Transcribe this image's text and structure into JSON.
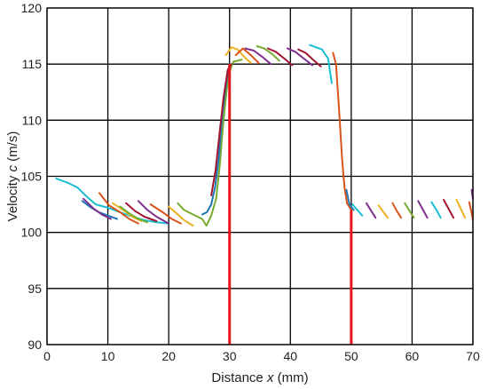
{
  "chart_data": {
    "type": "line",
    "title": "",
    "xlabel": "Distance x (mm)",
    "xlabel_parts": {
      "before": "Distance ",
      "var": "x",
      "after": " (mm)"
    },
    "ylabel": "Velocity c (m/s)",
    "ylabel_parts": {
      "before": "Velocity ",
      "var": "c",
      "after": " (m/s)"
    },
    "xlim": [
      0,
      70
    ],
    "ylim": [
      90,
      120
    ],
    "xticks": [
      0,
      10,
      20,
      30,
      40,
      50,
      60,
      70
    ],
    "yticks": [
      90,
      95,
      100,
      105,
      110,
      115,
      120
    ],
    "xtick_labels": [
      "0",
      "10",
      "20",
      "30",
      "40",
      "50",
      "60",
      "70"
    ],
    "ytick_labels": [
      "90",
      "95",
      "100",
      "105",
      "110",
      "115",
      "120"
    ],
    "grid": true,
    "vertical_markers": [
      {
        "x": 30,
        "y_top": 115,
        "color": "#e8141c"
      },
      {
        "x": 50,
        "y_top": 102,
        "color": "#e8141c"
      }
    ],
    "series": [
      {
        "color": "#17becf",
        "points": [
          [
            1.5,
            104.8
          ],
          [
            3.5,
            104.4
          ],
          [
            5,
            104
          ],
          [
            6.5,
            103.2
          ],
          [
            8,
            102.5
          ],
          [
            10,
            102.2
          ],
          [
            12,
            101.8
          ],
          [
            14,
            101.4
          ],
          [
            16,
            101.1
          ],
          [
            18,
            100.9
          ],
          [
            20,
            100.8
          ]
        ]
      },
      {
        "color": "#1f77b4",
        "points": [
          [
            5.8,
            102.8
          ],
          [
            7,
            102.3
          ],
          [
            8.5,
            101.8
          ],
          [
            10,
            101.5
          ],
          [
            11.5,
            101.2
          ]
        ]
      },
      {
        "color": "#7e2f8e",
        "points": [
          [
            6,
            103
          ],
          [
            7.5,
            102.2
          ],
          [
            9,
            101.6
          ],
          [
            10.5,
            101.2
          ]
        ]
      },
      {
        "color": "#d95319",
        "points": [
          [
            8.6,
            103.5
          ],
          [
            10.2,
            102.4
          ],
          [
            12,
            101.8
          ],
          [
            13.5,
            101.2
          ],
          [
            15,
            100.8
          ]
        ]
      },
      {
        "color": "#edb120",
        "points": [
          [
            10.8,
            102.6
          ],
          [
            12.5,
            102
          ],
          [
            14,
            101.4
          ],
          [
            15.5,
            101
          ]
        ]
      },
      {
        "color": "#77ac30",
        "points": [
          [
            12,
            102.3
          ],
          [
            13.5,
            101.7
          ],
          [
            15,
            101.2
          ],
          [
            16.5,
            100.9
          ]
        ]
      },
      {
        "color": "#a2142f",
        "points": [
          [
            13,
            102.6
          ],
          [
            14.5,
            101.9
          ],
          [
            16,
            101.4
          ],
          [
            18,
            101
          ]
        ]
      },
      {
        "color": "#7e2f8e",
        "points": [
          [
            15,
            102.8
          ],
          [
            16.5,
            102
          ],
          [
            18,
            101.4
          ],
          [
            20,
            100.8
          ]
        ]
      },
      {
        "color": "#d95319",
        "points": [
          [
            17,
            102.5
          ],
          [
            19,
            101.8
          ],
          [
            20.5,
            101.2
          ],
          [
            22,
            100.8
          ]
        ]
      },
      {
        "color": "#edb120",
        "points": [
          [
            20,
            102.3
          ],
          [
            21.5,
            101.6
          ],
          [
            22.5,
            101.1
          ],
          [
            24,
            100.6
          ]
        ]
      },
      {
        "color": "#77ac30",
        "points": [
          [
            21.5,
            102.6
          ],
          [
            22.5,
            102
          ],
          [
            24,
            101.6
          ],
          [
            25.5,
            101.2
          ],
          [
            26.2,
            100.6
          ],
          [
            27,
            101.5
          ],
          [
            27.8,
            103
          ],
          [
            28.4,
            106
          ],
          [
            29,
            110
          ],
          [
            29.8,
            114
          ],
          [
            30.6,
            115.2
          ],
          [
            32,
            115.4
          ]
        ]
      },
      {
        "color": "#1f77b4",
        "points": [
          [
            25.5,
            101.6
          ],
          [
            26.3,
            101.8
          ],
          [
            27,
            102.5
          ],
          [
            27.6,
            104
          ],
          [
            28.2,
            106.5
          ],
          [
            28.8,
            110.5
          ],
          [
            29.5,
            113.5
          ],
          [
            30,
            115
          ]
        ]
      },
      {
        "color": "#a2142f",
        "points": [
          [
            27,
            103.3
          ],
          [
            27.7,
            105.5
          ],
          [
            28.4,
            109
          ],
          [
            29,
            112
          ],
          [
            29.7,
            114.5
          ],
          [
            30.3,
            115
          ]
        ]
      },
      {
        "color": "#edb120",
        "points": [
          [
            29.4,
            115.8
          ],
          [
            30.3,
            116.5
          ],
          [
            31.3,
            116.3
          ],
          [
            32.5,
            115.6
          ],
          [
            33.5,
            115.1
          ]
        ]
      },
      {
        "color": "#d95319",
        "points": [
          [
            31,
            115.8
          ],
          [
            32.2,
            116.4
          ],
          [
            33.5,
            115.8
          ],
          [
            34.8,
            115.1
          ]
        ]
      },
      {
        "color": "#7e2f8e",
        "points": [
          [
            32.6,
            116.4
          ],
          [
            34,
            116.2
          ],
          [
            35.5,
            115.6
          ],
          [
            36.8,
            115
          ]
        ]
      },
      {
        "color": "#77ac30",
        "points": [
          [
            34.5,
            116.6
          ],
          [
            35.7,
            116.4
          ],
          [
            37,
            115.9
          ],
          [
            38.2,
            115.3
          ]
        ]
      },
      {
        "color": "#a2142f",
        "points": [
          [
            36.3,
            116.4
          ],
          [
            37.6,
            116.1
          ],
          [
            39,
            115.5
          ],
          [
            40.3,
            114.9
          ]
        ]
      },
      {
        "color": "#7e2f8e",
        "points": [
          [
            39.5,
            116.4
          ],
          [
            40.8,
            116.1
          ],
          [
            42.2,
            115.5
          ],
          [
            43.6,
            114.9
          ]
        ]
      },
      {
        "color": "#a2142f",
        "points": [
          [
            41.3,
            116.3
          ],
          [
            42.5,
            116
          ],
          [
            43.7,
            115.4
          ],
          [
            45,
            114.8
          ]
        ]
      },
      {
        "color": "#17becf",
        "points": [
          [
            43.2,
            116.7
          ],
          [
            44.2,
            116.5
          ],
          [
            45.2,
            116.3
          ],
          [
            46.2,
            115.5
          ],
          [
            46.8,
            113.3
          ]
        ]
      },
      {
        "color": "#d95319",
        "points": [
          [
            47,
            116
          ],
          [
            47.5,
            115
          ],
          [
            48,
            111
          ],
          [
            48.5,
            106.5
          ],
          [
            48.9,
            104
          ],
          [
            49.3,
            102.6
          ],
          [
            50,
            102
          ]
        ]
      },
      {
        "color": "#1f77b4",
        "points": [
          [
            49.2,
            103.8
          ],
          [
            49.7,
            102.5
          ],
          [
            50.4,
            102
          ]
        ]
      },
      {
        "color": "#17becf",
        "points": [
          [
            50.2,
            102.5
          ],
          [
            51,
            102
          ],
          [
            51.8,
            101.5
          ]
        ]
      },
      {
        "color": "#7e2f8e",
        "points": [
          [
            52.5,
            102.6
          ],
          [
            53.3,
            101.9
          ],
          [
            54,
            101.3
          ]
        ]
      },
      {
        "color": "#edb120",
        "points": [
          [
            54.5,
            102.4
          ],
          [
            55.3,
            101.8
          ],
          [
            56,
            101.3
          ]
        ]
      },
      {
        "color": "#d95319",
        "points": [
          [
            56.8,
            102.6
          ],
          [
            57.5,
            101.9
          ],
          [
            58.2,
            101.3
          ]
        ]
      },
      {
        "color": "#77ac30",
        "points": [
          [
            58.8,
            102.6
          ],
          [
            59.6,
            101.9
          ],
          [
            60.3,
            101.3
          ]
        ]
      },
      {
        "color": "#7e2f8e",
        "points": [
          [
            61,
            102.8
          ],
          [
            61.8,
            102
          ],
          [
            62.5,
            101.3
          ]
        ]
      },
      {
        "color": "#17becf",
        "points": [
          [
            63.2,
            102.7
          ],
          [
            64,
            102
          ],
          [
            64.7,
            101.3
          ]
        ]
      },
      {
        "color": "#a2142f",
        "points": [
          [
            65.2,
            102.9
          ],
          [
            66,
            102.1
          ],
          [
            66.8,
            101.3
          ]
        ]
      },
      {
        "color": "#edb120",
        "points": [
          [
            67.3,
            102.9
          ],
          [
            68,
            102.1
          ],
          [
            68.7,
            101.3
          ]
        ]
      },
      {
        "color": "#d95319",
        "points": [
          [
            69.4,
            102.7
          ],
          [
            69.8,
            101.7
          ],
          [
            70,
            101.1
          ]
        ]
      },
      {
        "color": "#7e2f8e",
        "points": [
          [
            69.8,
            103.8
          ],
          [
            70,
            103
          ]
        ]
      }
    ]
  }
}
